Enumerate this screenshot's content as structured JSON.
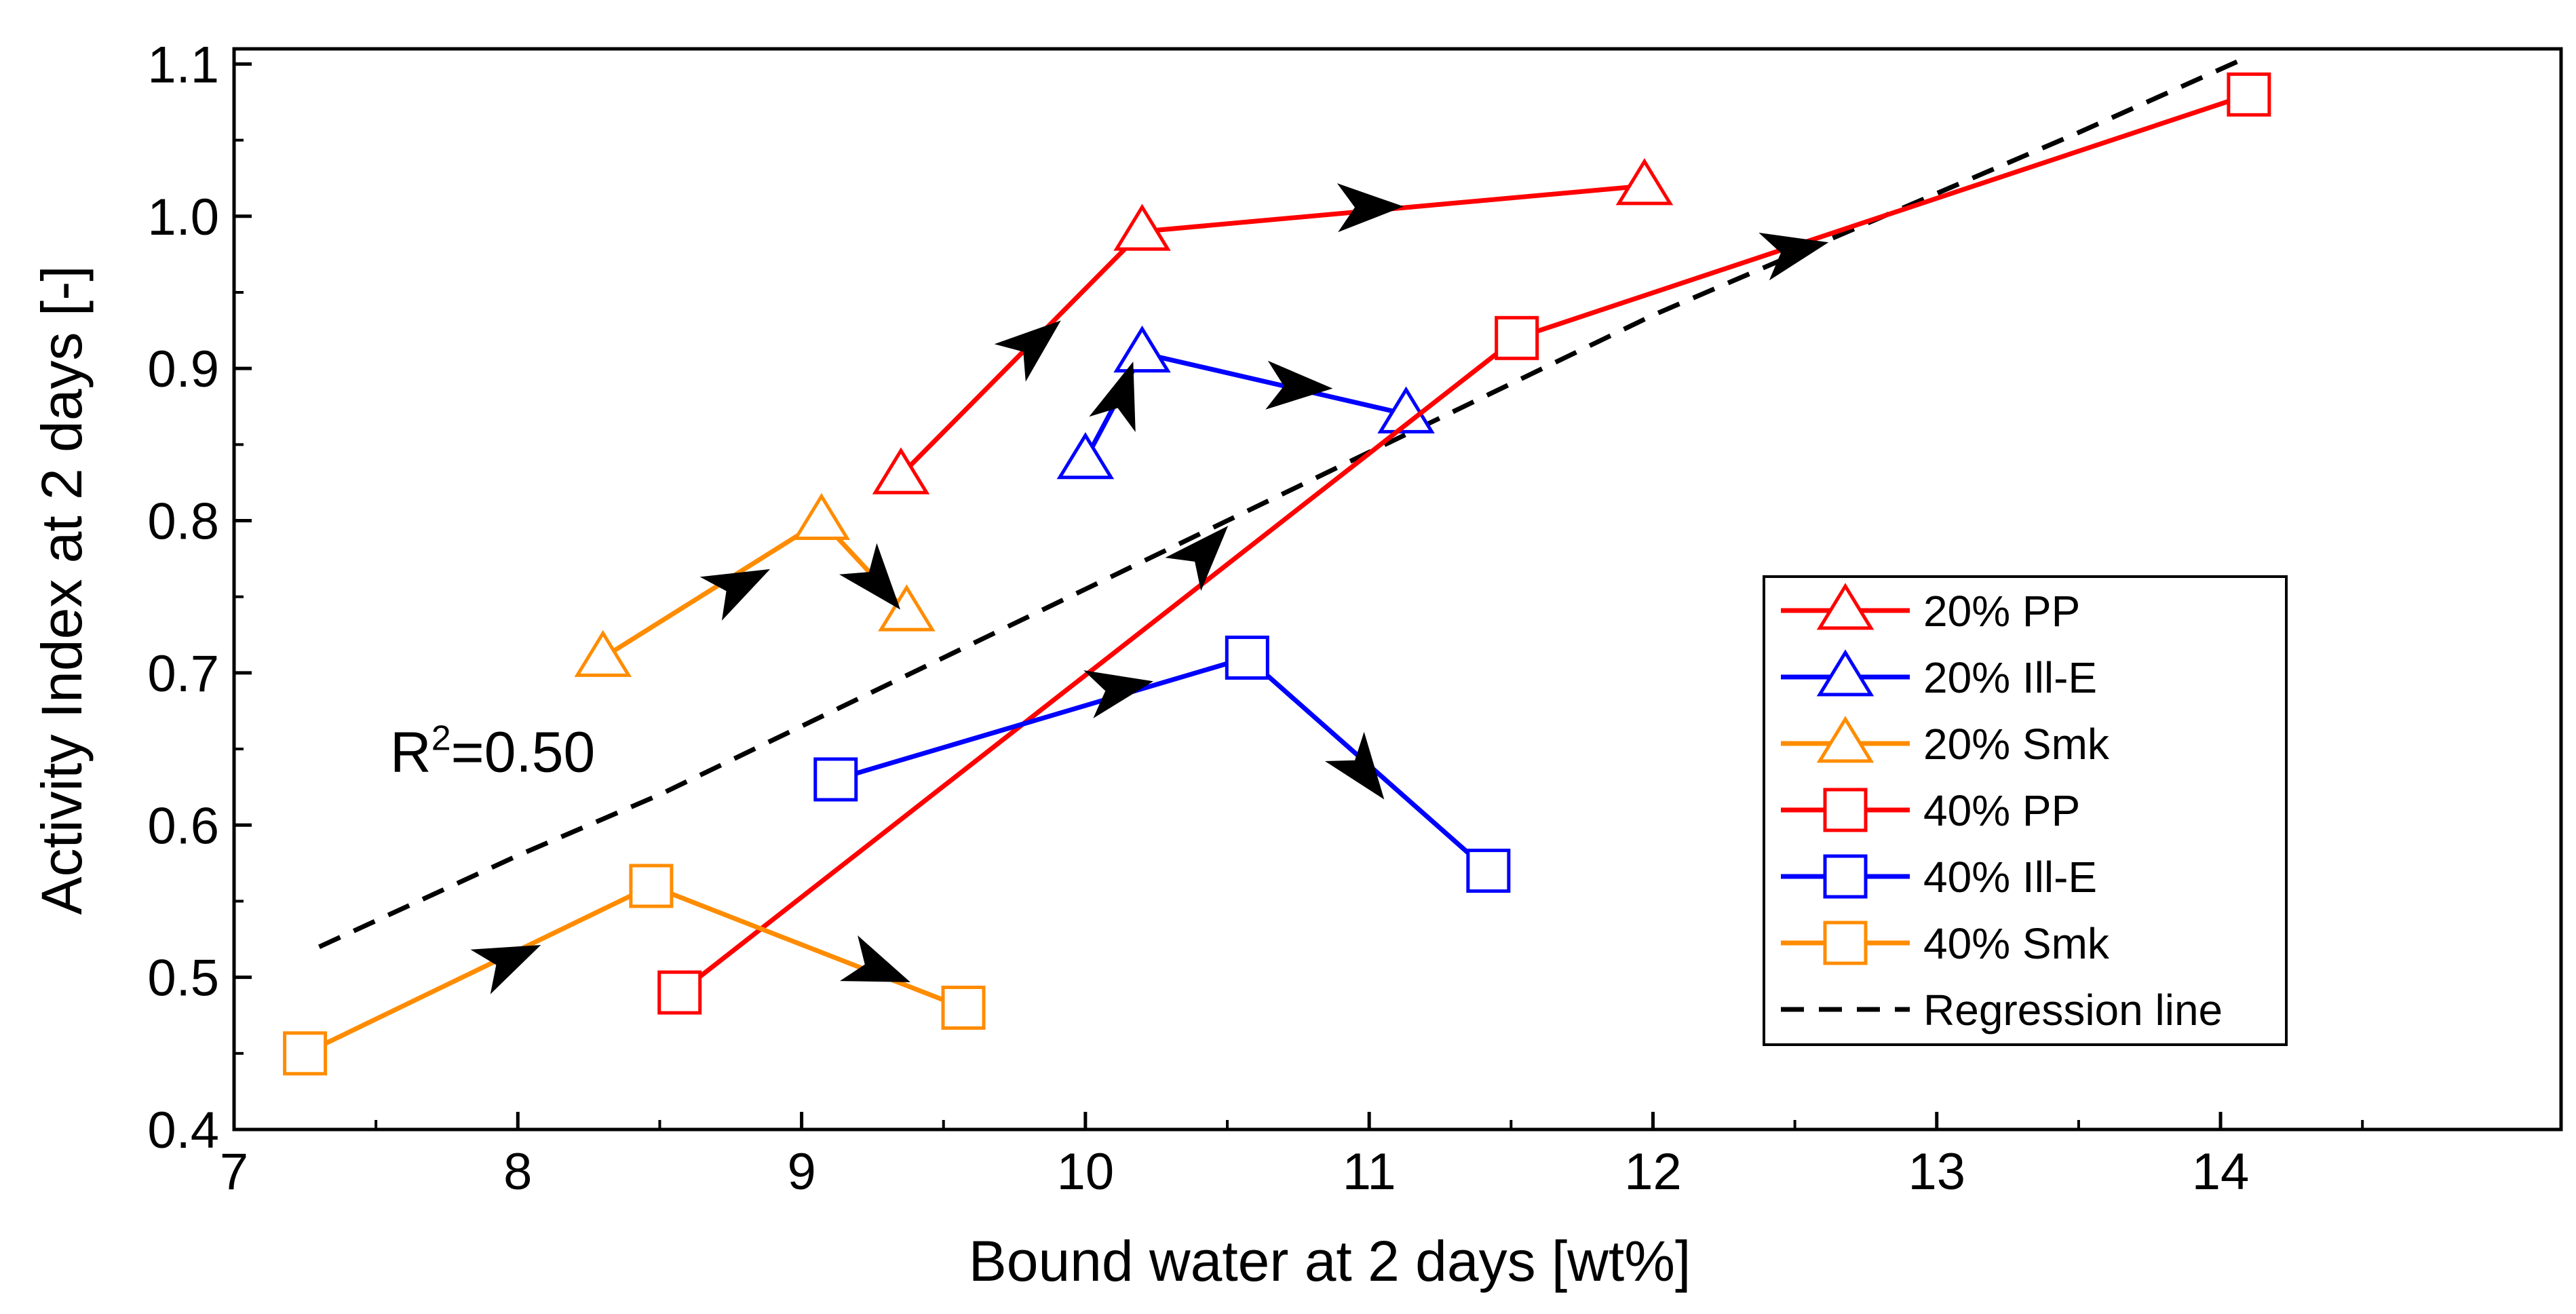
{
  "chart_data": {
    "type": "line",
    "title": "",
    "xlabel": "Bound water at 2 days [wt%]",
    "ylabel": "Activity Index at 2 days [-]",
    "xlim": [
      7,
      15.2
    ],
    "ylim": [
      0.4,
      1.11
    ],
    "x_ticks": [
      7,
      8,
      9,
      10,
      11,
      12,
      13,
      14
    ],
    "x_tick_labels": [
      "7",
      "8",
      "9",
      "10",
      "11",
      "12",
      "13",
      "14"
    ],
    "y_ticks": [
      0.4,
      0.5,
      0.6,
      0.7,
      0.8,
      0.9,
      1.0,
      1.1
    ],
    "y_tick_labels": [
      "0.4",
      "0.5",
      "0.6",
      "0.7",
      "0.8",
      "0.9",
      "1.0",
      "1.1"
    ],
    "grid": false,
    "legend_position": "bottom-right",
    "series": [
      {
        "name": "20% PP",
        "color": "#ff0000",
        "marker": "triangle",
        "x": [
          9.35,
          10.2,
          11.97
        ],
        "y": [
          0.83,
          0.99,
          1.02
        ]
      },
      {
        "name": "20% Ill-E",
        "color": "#0000ff",
        "marker": "triangle",
        "x": [
          10.0,
          10.2,
          11.13
        ],
        "y": [
          0.84,
          0.91,
          0.87
        ]
      },
      {
        "name": "20% Smk",
        "color": "#ff8c00",
        "marker": "triangle",
        "x": [
          8.3,
          9.07,
          9.37
        ],
        "y": [
          0.71,
          0.8,
          0.74
        ]
      },
      {
        "name": "40% PP",
        "color": "#ff0000",
        "marker": "square",
        "x": [
          8.57,
          11.52,
          14.1
        ],
        "y": [
          0.49,
          0.92,
          1.08
        ]
      },
      {
        "name": "40% Ill-E",
        "color": "#0000ff",
        "marker": "square",
        "x": [
          9.12,
          10.57,
          11.42
        ],
        "y": [
          0.63,
          0.71,
          0.57
        ]
      },
      {
        "name": "40% Smk",
        "color": "#ff8c00",
        "marker": "square",
        "x": [
          7.25,
          8.47,
          9.57
        ],
        "y": [
          0.45,
          0.56,
          0.48
        ]
      }
    ],
    "regression": {
      "name": "Regression line",
      "color": "#000000",
      "x": [
        7.3,
        8.0,
        8.5,
        9.0,
        9.5,
        10.0,
        10.5,
        11.0,
        11.5,
        12.0,
        12.5,
        13.0,
        13.5,
        14.1
      ],
      "y": [
        0.52,
        0.58,
        0.62,
        0.665,
        0.71,
        0.755,
        0.8,
        0.845,
        0.89,
        0.935,
        0.975,
        1.015,
        1.055,
        1.105
      ]
    },
    "annotations": [
      {
        "base": "R",
        "sup": "2",
        "rest": "=0.50",
        "x": 7.55,
        "y": 0.635
      }
    ],
    "arrows": [
      {
        "x": 9.82,
        "y": 0.917,
        "dx": 0.6,
        "dy": 0.5
      },
      {
        "x": 11.0,
        "y": 1.006,
        "dx": 1.0,
        "dy": 0.018
      },
      {
        "x": 10.13,
        "y": 0.883,
        "dx": 0.3,
        "dy": 0.9
      },
      {
        "x": 10.75,
        "y": 0.888,
        "dx": 1.0,
        "dy": -0.05
      },
      {
        "x": 8.78,
        "y": 0.758,
        "dx": 0.9,
        "dy": 0.45
      },
      {
        "x": 9.27,
        "y": 0.759,
        "dx": 0.5,
        "dy": -0.6
      },
      {
        "x": 10.42,
        "y": 0.78,
        "dx": 0.65,
        "dy": 0.7
      },
      {
        "x": 12.5,
        "y": 0.978,
        "dx": 1.0,
        "dy": 0.22
      },
      {
        "x": 10.12,
        "y": 0.69,
        "dx": 1.0,
        "dy": 0.2
      },
      {
        "x": 10.98,
        "y": 0.635,
        "dx": 0.45,
        "dy": -0.6
      },
      {
        "x": 7.97,
        "y": 0.512,
        "dx": 0.9,
        "dy": 0.4
      },
      {
        "x": 9.27,
        "y": 0.505,
        "dx": 0.9,
        "dy": -0.35
      }
    ]
  }
}
